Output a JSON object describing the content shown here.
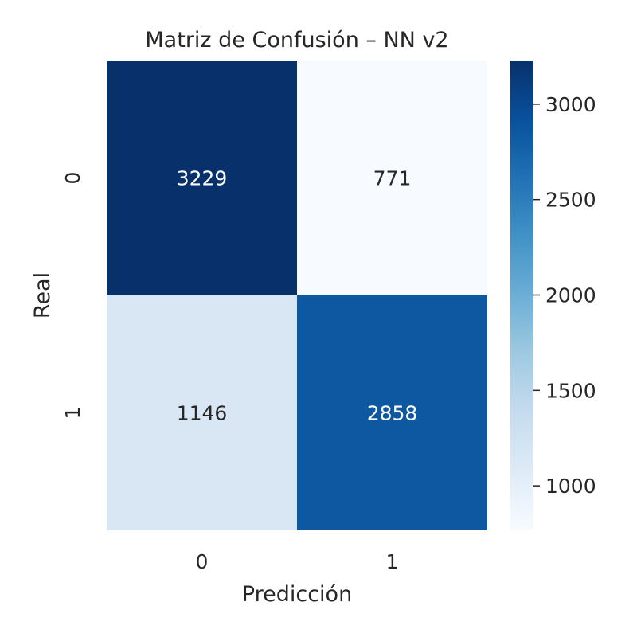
{
  "chart_data": {
    "type": "heatmap",
    "title": "Matriz de Confusión – NN v2",
    "xlabel": "Predicción",
    "ylabel": "Real",
    "x_categories": [
      "0",
      "1"
    ],
    "y_categories": [
      "0",
      "1"
    ],
    "values": [
      [
        3229,
        771
      ],
      [
        1146,
        2858
      ]
    ],
    "colormap": "Blues",
    "colorbar": {
      "range": [
        771,
        3229
      ],
      "ticks": [
        1000,
        1500,
        2000,
        2500,
        3000
      ],
      "tick_labels": [
        "1000",
        "1500",
        "2000",
        "2500",
        "3000"
      ]
    }
  }
}
